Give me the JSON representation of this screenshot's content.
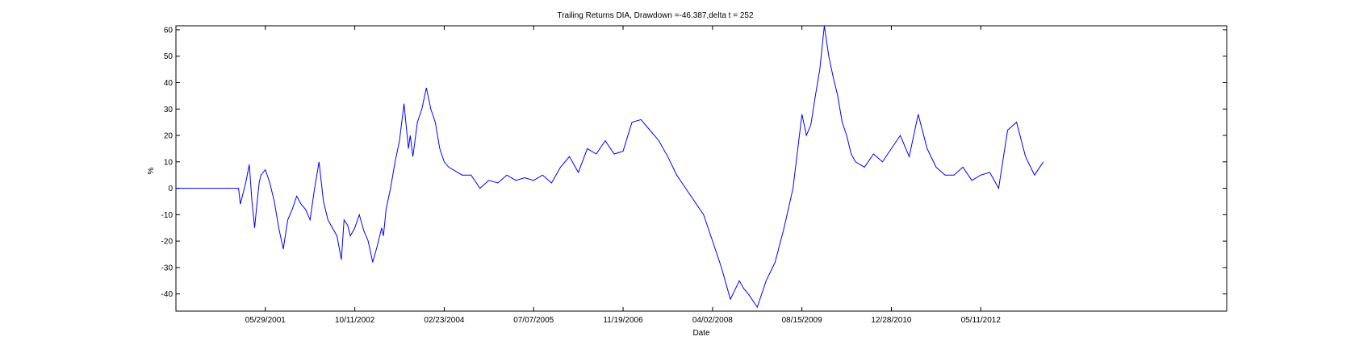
{
  "chart_data": {
    "type": "line",
    "title": "Trailing Returns DIA, Drawdown =-46.387,delta t = 252",
    "xlabel": "Date",
    "ylabel": "%",
    "ylim": [
      -46.5,
      61.5
    ],
    "xlim": [
      0,
      11.75
    ],
    "yticks": [
      -40,
      -30,
      -20,
      -10,
      0,
      10,
      20,
      30,
      40,
      50,
      60
    ],
    "xticks": [
      {
        "v": 1,
        "label": "05/29/2001"
      },
      {
        "v": 2,
        "label": "10/11/2002"
      },
      {
        "v": 3,
        "label": "02/23/2004"
      },
      {
        "v": 4,
        "label": "07/07/2005"
      },
      {
        "v": 5,
        "label": "11/19/2006"
      },
      {
        "v": 6,
        "label": "04/02/2008"
      },
      {
        "v": 7,
        "label": "08/15/2009"
      },
      {
        "v": 8,
        "label": "12/28/2010"
      },
      {
        "v": 9,
        "label": "05/11/2012"
      }
    ],
    "grid": false,
    "colors": {
      "line": "#0000ff",
      "axis": "#000000"
    },
    "series": [
      {
        "x": [
          0,
          0.7,
          0.72,
          0.78,
          0.82,
          0.85,
          0.88,
          0.9,
          0.93,
          0.95,
          1.0,
          1.05,
          1.1,
          1.15,
          1.2,
          1.25,
          1.3,
          1.35,
          1.4,
          1.45,
          1.5,
          1.55,
          1.6,
          1.65,
          1.7,
          1.75,
          1.8,
          1.85,
          1.88,
          1.92,
          1.95,
          2.0,
          2.05,
          2.1,
          2.15,
          2.2,
          2.25,
          2.3,
          2.32,
          2.35,
          2.4,
          2.45,
          2.5,
          2.55,
          2.6,
          2.62,
          2.65,
          2.7,
          2.75,
          2.8,
          2.85,
          2.9,
          2.95,
          3.0,
          3.05,
          3.1,
          3.2,
          3.3,
          3.4,
          3.5,
          3.6,
          3.7,
          3.8,
          3.9,
          4.0,
          4.1,
          4.2,
          4.3,
          4.4,
          4.5,
          4.6,
          4.7,
          4.8,
          4.9,
          5.0,
          5.1,
          5.2,
          5.3,
          5.4,
          5.5,
          5.6,
          5.7,
          5.8,
          5.9,
          6.0,
          6.1,
          6.2,
          6.3,
          6.35,
          6.4,
          6.5,
          6.6,
          6.7,
          6.8,
          6.9,
          7.0,
          7.05,
          7.1,
          7.15,
          7.2,
          7.25,
          7.3,
          7.35,
          7.4,
          7.45,
          7.5,
          7.55,
          7.6,
          7.7,
          7.8,
          7.9,
          8.0,
          8.1,
          8.2,
          8.3,
          8.4,
          8.5,
          8.6,
          8.7,
          8.8,
          8.9,
          9.0,
          9.1,
          9.2,
          9.3,
          9.4,
          9.5,
          9.6,
          9.7
        ],
        "y": [
          0,
          0,
          -6,
          2,
          9,
          -5,
          -15,
          -8,
          2,
          5,
          7,
          2,
          -5,
          -15,
          -23,
          -12,
          -8,
          -3,
          -6,
          -8,
          -12,
          0,
          10,
          -5,
          -12,
          -15,
          -18,
          -27,
          -12,
          -14,
          -18,
          -15,
          -10,
          -16,
          -20,
          -28,
          -22,
          -15,
          -18,
          -8,
          0,
          10,
          18,
          32,
          15,
          20,
          12,
          25,
          30,
          38,
          30,
          25,
          15,
          10,
          8,
          7,
          5,
          5,
          0,
          3,
          2,
          5,
          3,
          4,
          3,
          5,
          2,
          8,
          12,
          6,
          15,
          13,
          18,
          13,
          14,
          25,
          26,
          22,
          18,
          12,
          5,
          0,
          -5,
          -10,
          -20,
          -30,
          -42,
          -35,
          -38,
          -40,
          -45,
          -35,
          -28,
          -15,
          0,
          28,
          20,
          24,
          35,
          45,
          63,
          50,
          42,
          35,
          25,
          20,
          13,
          10,
          8,
          13,
          10,
          15,
          20,
          12,
          28,
          15,
          8,
          5,
          5,
          8,
          3,
          5,
          6,
          0,
          22,
          25,
          12,
          5,
          10
        ]
      }
    ]
  }
}
